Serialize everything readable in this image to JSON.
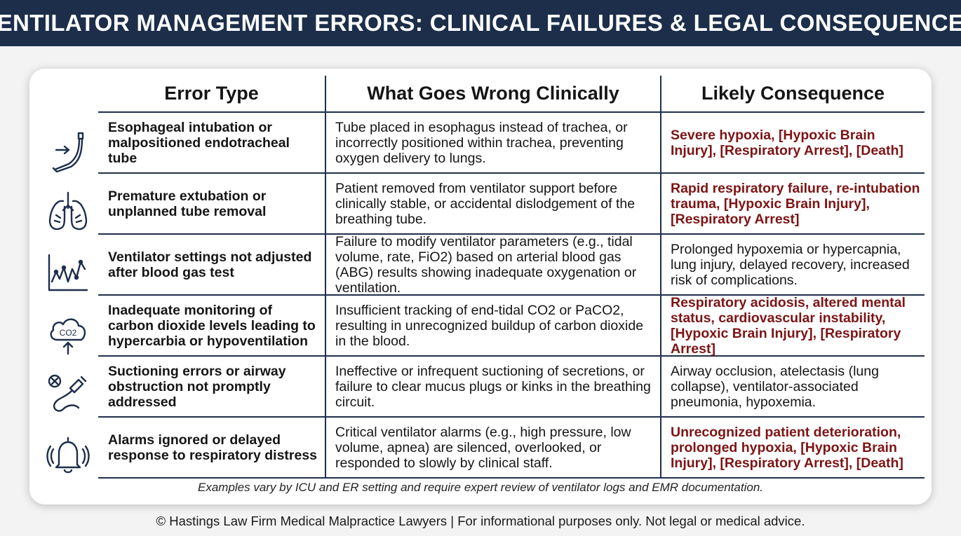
{
  "title": "VENTILATOR MANAGEMENT ERRORS: CLINICAL FAILURES & LEGAL CONSEQUENCES",
  "table": {
    "headers": [
      "Error Type",
      "What Goes Wrong Clinically",
      "Likely Consequence"
    ],
    "rows": [
      {
        "icon": "endotracheal-tube-icon",
        "error": "Esophageal intubation or malpositioned endotracheal tube",
        "what": "Tube placed in esophagus instead of trachea, or incorrectly positioned within trachea, preventing oxygen delivery to lungs.",
        "consequence": "Severe hypoxia, [Hypoxic Brain Injury], [Respiratory Arrest], [Death]",
        "severe": true
      },
      {
        "icon": "lungs-icon",
        "error": "Premature extubation or unplanned tube removal",
        "what": "Patient removed from ventilator support before clinically stable, or accidental dislodgement of the breathing tube.",
        "consequence": "Rapid respiratory failure, re-intubation trauma, [Hypoxic Brain Injury], [Respiratory Arrest]",
        "severe": true
      },
      {
        "icon": "monitor-graph-icon",
        "error": "Ventilator settings not adjusted after blood gas test",
        "what": "Failure to modify ventilator parameters (e.g., tidal volume, rate, FiO2) based on arterial blood gas (ABG) results showing inadequate oxygenation or ventilation.",
        "consequence": "Prolonged hypoxemia or hypercapnia, lung injury, delayed recovery, increased risk of complications.",
        "severe": false
      },
      {
        "icon": "co2-cloud-icon",
        "icon_text": "CO2",
        "error": "Inadequate monitoring of carbon dioxide levels leading to hypercarbia or hypoventilation",
        "what": "Insufficient tracking of end-tidal CO2 or PaCO2, resulting in unrecognized buildup of carbon dioxide in the blood.",
        "consequence": "Respiratory acidosis, altered mental status, cardiovascular instability, [Hypoxic Brain Injury], [Respiratory Arrest]",
        "severe": true
      },
      {
        "icon": "suction-catheter-icon",
        "error": "Suctioning errors or airway obstruction not promptly addressed",
        "what": "Ineffective or infrequent suctioning of secretions, or failure to clear mucus plugs or kinks in the breathing circuit.",
        "consequence": "Airway occlusion, atelectasis (lung collapse), ventilator-associated pneumonia, hypoxemia.",
        "severe": false
      },
      {
        "icon": "alarm-bell-icon",
        "error": "Alarms ignored or delayed response to respiratory distress",
        "what": "Critical ventilator alarms (e.g., high pressure, low volume, apnea) are silenced, overlooked, or responded to slowly by clinical staff.",
        "consequence": "Unrecognized patient deterioration, prolonged hypoxia, [Hypoxic Brain Injury], [Respiratory Arrest], [Death]",
        "severe": true
      }
    ]
  },
  "note": "Examples vary by ICU and ER setting and require expert review of ventilator logs and EMR documentation.",
  "footer": "© Hastings Law Firm Medical Malpractice Lawyers | For informational purposes only. Not legal or medical advice.",
  "colors": {
    "header_bg": "#1c2e4a",
    "severe_text": "#7d1414",
    "rule": "#1f2f4a"
  }
}
